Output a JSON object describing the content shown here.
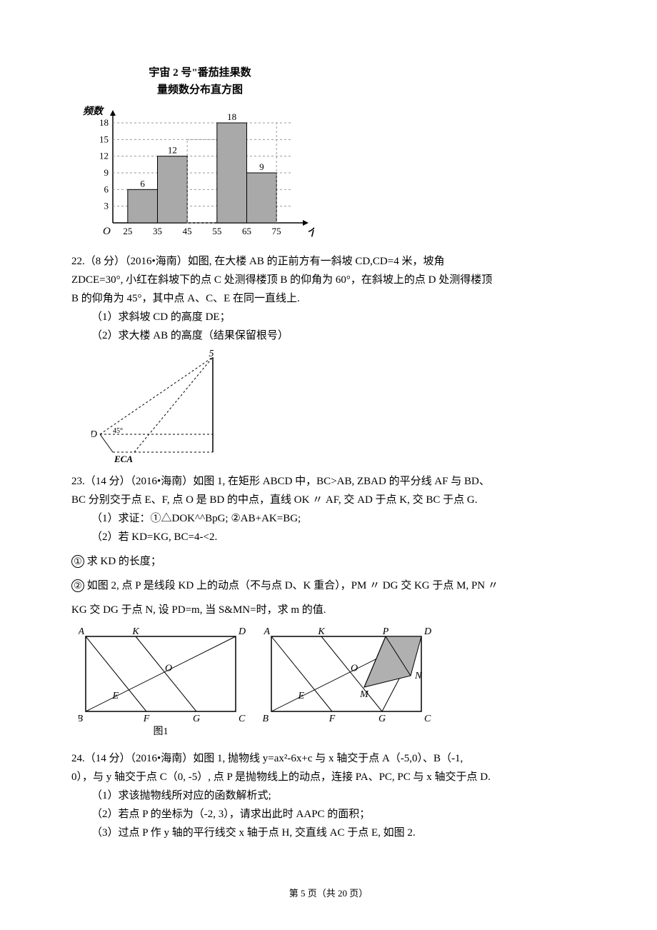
{
  "histogram": {
    "title_line1": "宇宙 2 号\"番茄挂果数",
    "title_line2": "量频数分布直方图",
    "y_label": "频数",
    "x_label": "个数",
    "y_ticks": [
      3,
      6,
      9,
      12,
      15,
      18
    ],
    "x_ticks": [
      25,
      35,
      45,
      55,
      65,
      75
    ],
    "bars": [
      6,
      12,
      null,
      18,
      9
    ],
    "bar_labels": [
      "6",
      "12",
      "",
      "18",
      "9"
    ],
    "bar_color": "#a9a9a9",
    "grid_color": "#999999",
    "axis_color": "#000000"
  },
  "q22": {
    "head": "22.（8 分）（2016•海南）如图, 在大楼 AB 的正前方有一斜坡 CD,CD=4 米，坡角",
    "line2": "ZDCE=30°, 小红在斜坡下的点 C 处测得楼顶 B 的仰角为 60°，在斜坡上的点 D 处测得楼顶",
    "line3": "B 的仰角为 45°，其中点 A、C、E 在同一直线上.",
    "sub1": "（1）求斜坡 CD 的高度 DE；",
    "sub2": "（2）求大楼 AB 的高度（结果保留根号）",
    "diagram": {
      "top_label": "5",
      "left_label": "D",
      "angle_label": "45°",
      "bottom_label": "ECA"
    }
  },
  "q23": {
    "head": "23.（14 分）（2016•海南）如图 1, 在矩形 ABCD 中，BC>AB, ZBAD 的平分线 AF 与 BD、",
    "line2": "BC 分别交于点 E、F, 点 O 是 BD 的中点，直线 OK 〃 AF, 交 AD 于点 K, 交 BC 于点 G.",
    "sub1": "（1）求证：①△DOK^^BpG;  ②AB+AK=BG;",
    "sub2": "（2）若 KD=KG, BC=4-<2.",
    "c1_label": "①",
    "c1_text": " 求 KD 的长度；",
    "c2_label": "②",
    "c2_text": " 如图 2, 点 P 是线段 KD 上的动点（不与点 D、K 重合），PM 〃 DG 交 KG 于点 M, PN 〃",
    "line_c2b": "KG 交 DG 于点 N, 设 PD=m, 当 S&MN=时，求 m 的值.",
    "figure": {
      "labels1": {
        "A": "A",
        "K": "K",
        "D": "D",
        "B": "B",
        "E": "E",
        "O": "O",
        "F": "F",
        "G": "G",
        "C": "C",
        "caption": "图1"
      },
      "labels2": {
        "A": "A",
        "K": "K",
        "P": "P",
        "D": "D",
        "B": "B",
        "E": "E",
        "O": "O",
        "M": "M",
        "N": "N",
        "F": "F",
        "G": "G",
        "C": "C"
      },
      "shade_color": "#b0b0b0"
    }
  },
  "q24": {
    "head": "24.（14 分）（2016•海南）如图 1, 抛物线 y=ax²-6x+c 与 x 轴交于点 A（-5,0）、B（-1,",
    "line2": "0），与 y 轴交于点 C（0, -5）, 点 P 是抛物线上的动点，连接 PA、PC, PC 与 x 轴交于点 D.",
    "sub1": "（1）求该抛物线所对应的函数解析式;",
    "sub2": "（2）若点 P 的坐标为（-2, 3），请求出此时 AAPC 的面积；",
    "sub3": "（3）过点 P 作 y 轴的平行线交 x 轴于点 H, 交直线 AC 于点 E, 如图 2."
  },
  "footer": {
    "page": "第 5 页（共 20 页）"
  }
}
